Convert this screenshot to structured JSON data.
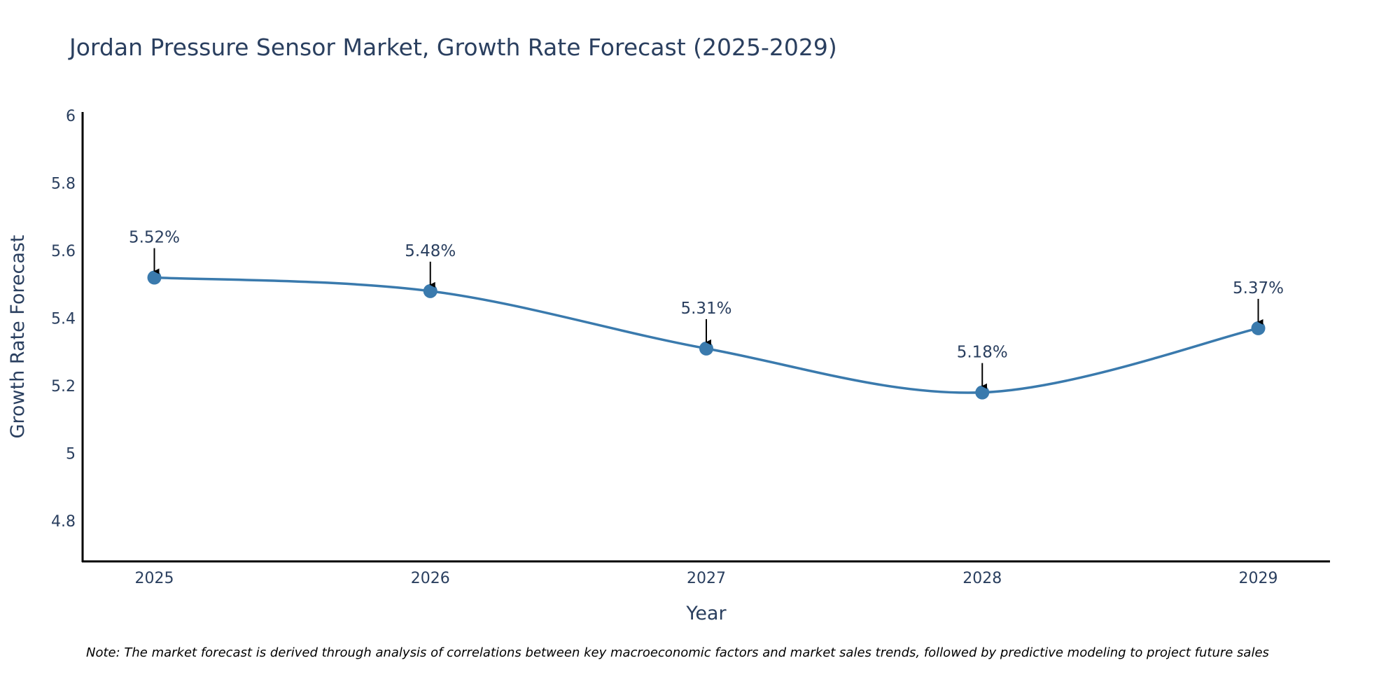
{
  "chart_data": {
    "type": "line",
    "title": "Jordan Pressure Sensor Market, Growth Rate Forecast (2025-2029)",
    "xlabel": "Year",
    "ylabel": "Growth Rate Forecast",
    "categories": [
      "2025",
      "2026",
      "2027",
      "2028",
      "2029"
    ],
    "x": [
      2025,
      2026,
      2027,
      2028,
      2029
    ],
    "series": [
      {
        "name": "Growth Rate Forecast",
        "values": [
          5.52,
          5.48,
          5.31,
          5.18,
          5.37
        ],
        "color": "#3a7aad"
      }
    ],
    "data_labels": [
      "5.52%",
      "5.48%",
      "5.31%",
      "5.18%",
      "5.37%"
    ],
    "xlim": [
      2024.74,
      2029.26
    ],
    "ylim": [
      4.68,
      6.01
    ],
    "yticks": [
      4.8,
      5,
      5.2,
      5.4,
      5.6,
      5.8,
      6
    ],
    "ytick_labels": [
      "4.8",
      "5",
      "5.2",
      "5.4",
      "5.6",
      "5.8",
      "6"
    ],
    "line_shape": "spline",
    "grid": false,
    "legend": "none",
    "annotation_arrow_color": "#000000"
  },
  "note": "Note: The market forecast is derived through analysis of correlations between key macroeconomic factors and market sales trends, followed by predictive modeling to project future sales"
}
